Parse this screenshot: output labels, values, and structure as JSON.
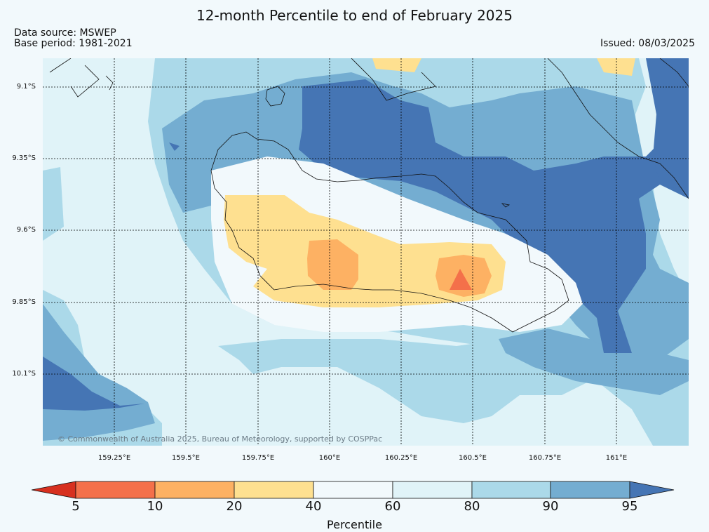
{
  "header": {
    "title": "12-month Percentile to end of February 2025",
    "source": "Data source: MSWEP",
    "base_period": "Base period: 1981-2021",
    "issued": "Issued: 08/03/2025"
  },
  "axes": {
    "lat_labels": [
      "9.1°S",
      "9.35°S",
      "9.6°S",
      "9.85°S",
      "10.1°S"
    ],
    "lon_labels": [
      "159.25°E",
      "159.5°E",
      "159.75°E",
      "160°E",
      "160.25°E",
      "160.5°E",
      "160.75°E",
      "161°E"
    ]
  },
  "credit": "© Commonwealth of Australia 2025, Bureau of Meteorology, supported by COSPPac",
  "legend": {
    "title": "Percentile",
    "ticks": [
      "5",
      "10",
      "20",
      "40",
      "60",
      "80",
      "90",
      "95"
    ],
    "colors": [
      "#d7301f",
      "#f4704a",
      "#fdb163",
      "#fee090",
      "#f2f9fc",
      "#e0f3f8",
      "#abd9e9",
      "#74add1",
      "#4575b4"
    ]
  },
  "palette": {
    "p0_5": "#d7301f",
    "p5_10": "#f4704a",
    "p10_20": "#fdb163",
    "p20_40": "#fee090",
    "p40_60": "#f2f9fc",
    "p60_80": "#e0f3f8",
    "p80_90": "#abd9e9",
    "p90_95": "#74add1",
    "p95_100": "#4575b4"
  }
}
